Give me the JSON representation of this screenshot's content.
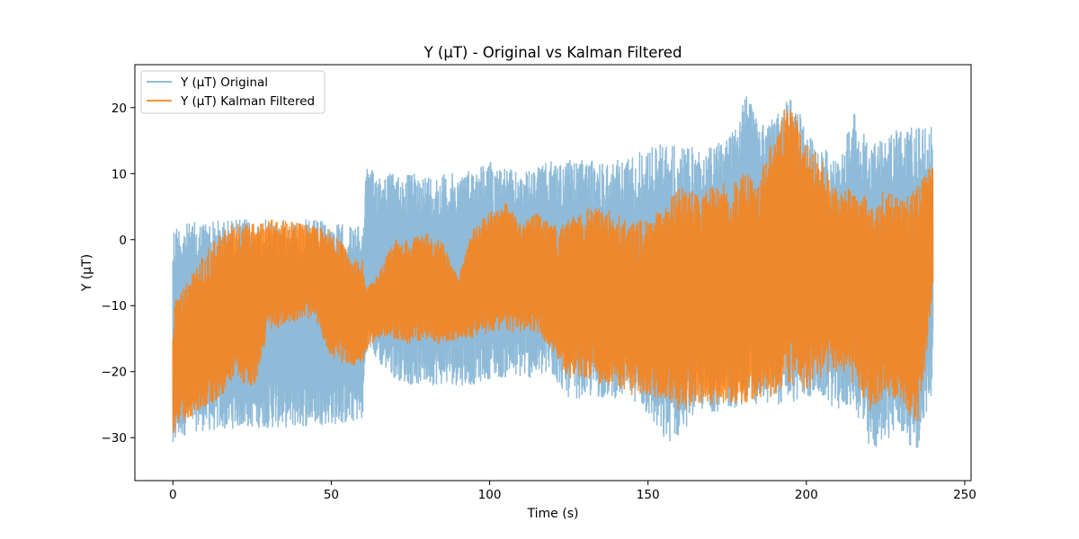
{
  "chart_data": {
    "type": "line",
    "title": "Y (μT) - Original vs Kalman Filtered",
    "xlabel": "Time (s)",
    "ylabel": "Y (μT)",
    "xlim": [
      -12,
      252
    ],
    "ylim": [
      -36.5,
      26.5
    ],
    "xticks": [
      0,
      50,
      100,
      150,
      200,
      250
    ],
    "xtick_labels": [
      "0",
      "50",
      "100",
      "150",
      "200",
      "250"
    ],
    "yticks": [
      -30,
      -20,
      -10,
      0,
      10,
      20
    ],
    "ytick_labels": [
      "−30",
      "−20",
      "−10",
      "0",
      "10",
      "20"
    ],
    "grid": false,
    "legend_position": "top-left",
    "series": [
      {
        "name": "Y (μT) Original",
        "color": "#1f77b4",
        "alpha": 0.5,
        "rendering": "dense oscillating signal; envelope shown as upper / lower bounds over time",
        "x": [
          0,
          1,
          5,
          10,
          15,
          20,
          25,
          30,
          35,
          40,
          45,
          50,
          55,
          58,
          60,
          61,
          62,
          65,
          70,
          75,
          80,
          85,
          90,
          95,
          100,
          105,
          110,
          115,
          120,
          125,
          130,
          135,
          140,
          145,
          150,
          155,
          160,
          165,
          170,
          175,
          180,
          185,
          190,
          195,
          200,
          205,
          210,
          215,
          220,
          225,
          230,
          235,
          240
        ],
        "upper": [
          2.5,
          2.5,
          2.5,
          3,
          3,
          3.2,
          3,
          3,
          3,
          3,
          3,
          2.5,
          2.3,
          2,
          2,
          11,
          10.5,
          10.5,
          10,
          10,
          10,
          10,
          10,
          11,
          12,
          11,
          10,
          11,
          12,
          12,
          12,
          12,
          12,
          13,
          14,
          15,
          14,
          14,
          14,
          16,
          23,
          18,
          19,
          22,
          17,
          14,
          12,
          20,
          14,
          16,
          17,
          17,
          17
        ],
        "lower": [
          -33.5,
          -31,
          -29,
          -29,
          -29,
          -28.5,
          -28.5,
          -28.5,
          -28.5,
          -28.5,
          -28,
          -28,
          -28,
          -27.5,
          -27.5,
          -17,
          -16.5,
          -19,
          -21,
          -22,
          -22,
          -22,
          -22,
          -22,
          -21,
          -21,
          -21,
          -21,
          -21,
          -24,
          -24,
          -24,
          -24,
          -24,
          -27,
          -31,
          -30,
          -26,
          -26,
          -26,
          -25,
          -25,
          -25,
          -25,
          -24,
          -24,
          -26,
          -25,
          -33,
          -30,
          -30,
          -32,
          -23
        ]
      },
      {
        "name": "Y (μT) Kalman Filtered",
        "color": "#ff7f0e",
        "alpha": 0.85,
        "rendering": "dense oscillating signal; envelope shown as upper / lower bounds over time",
        "x": [
          0,
          1,
          5,
          10,
          15,
          20,
          25,
          30,
          35,
          40,
          45,
          50,
          55,
          58,
          60,
          61,
          62,
          65,
          70,
          75,
          80,
          85,
          90,
          95,
          100,
          105,
          110,
          115,
          120,
          125,
          130,
          135,
          140,
          145,
          150,
          155,
          160,
          165,
          170,
          175,
          180,
          185,
          190,
          195,
          200,
          205,
          210,
          215,
          220,
          225,
          230,
          235,
          240
        ],
        "upper": [
          -12,
          -9,
          -6,
          -2,
          1,
          2.5,
          2.5,
          3,
          3,
          2.5,
          2,
          1.5,
          -1.5,
          -3,
          -3,
          -7,
          -7,
          -5,
          0,
          0,
          1,
          0,
          -6,
          2,
          4,
          6,
          3,
          4,
          2,
          3,
          5,
          5,
          4,
          3,
          3,
          5,
          8,
          7,
          8,
          9,
          10,
          10,
          16,
          22,
          15,
          12,
          7,
          8,
          6,
          8,
          6,
          8,
          12
        ],
        "lower": [
          -32.5,
          -28,
          -27,
          -26,
          -24,
          -20,
          -24,
          -14,
          -13,
          -12,
          -12,
          -18,
          -19,
          -19,
          -19,
          -17,
          -16,
          -15,
          -15,
          -16,
          -15,
          -16,
          -15,
          -15,
          -14,
          -14,
          -14,
          -14,
          -17,
          -21,
          -21,
          -22,
          -22,
          -24,
          -24,
          -24,
          -26,
          -25,
          -25,
          -25,
          -25,
          -24,
          -24,
          -22,
          -23,
          -21,
          -20,
          -22,
          -26,
          -24,
          -24,
          -29,
          -10
        ]
      }
    ]
  }
}
